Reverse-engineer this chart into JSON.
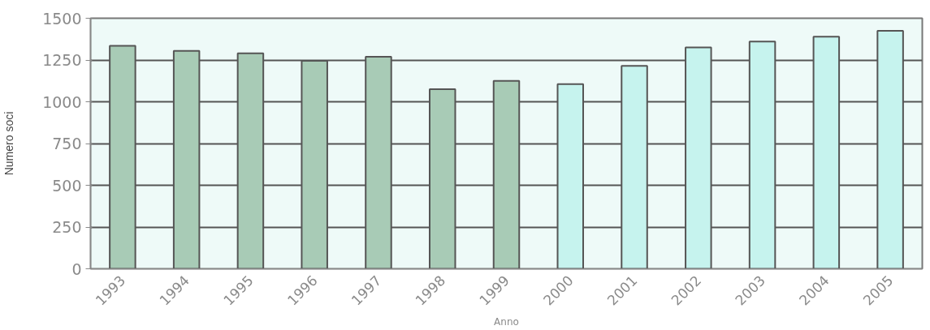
{
  "chart_data": {
    "type": "bar",
    "xlabel": "Anno",
    "ylabel": "Numero soci",
    "categories": [
      "1993",
      "1994",
      "1995",
      "1996",
      "1997",
      "1998",
      "1999",
      "2000",
      "2001",
      "2002",
      "2003",
      "2004",
      "2005"
    ],
    "values": [
      1335,
      1305,
      1290,
      1245,
      1270,
      1075,
      1125,
      1105,
      1215,
      1325,
      1360,
      1390,
      1425
    ],
    "colors": [
      "#a8cbb6",
      "#a8cbb6",
      "#a8cbb6",
      "#a8cbb6",
      "#a8cbb6",
      "#a8cbb6",
      "#a8cbb6",
      "#c6f3ee",
      "#c6f3ee",
      "#c6f3ee",
      "#c6f3ee",
      "#c6f3ee",
      "#c6f3ee"
    ],
    "ylim": [
      0,
      1500
    ],
    "yticks": [
      0,
      250,
      500,
      750,
      1000,
      1250,
      1500
    ],
    "grid": "y"
  }
}
